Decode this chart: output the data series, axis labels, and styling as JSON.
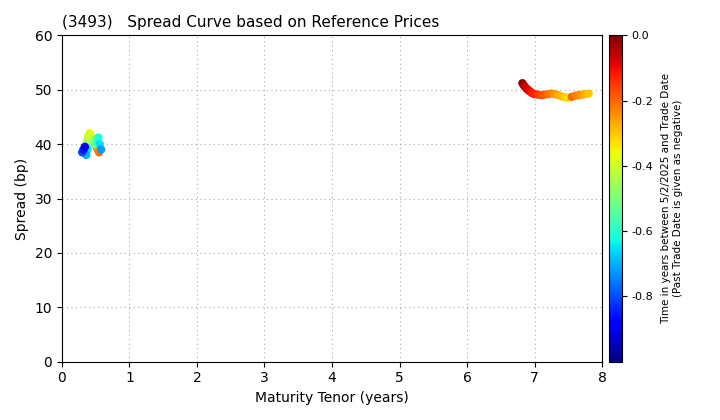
{
  "title": "(3493)   Spread Curve based on Reference Prices",
  "xlabel": "Maturity Tenor (years)",
  "ylabel": "Spread (bp)",
  "xlim": [
    0,
    8
  ],
  "ylim": [
    0,
    60
  ],
  "xticks": [
    0,
    1,
    2,
    3,
    4,
    5,
    6,
    7,
    8
  ],
  "yticks": [
    0,
    10,
    20,
    30,
    40,
    50,
    60
  ],
  "colorbar_label_line1": "Time in years between 5/2/2025 and Trade Date",
  "colorbar_label_line2": "(Past Trade Date is given as negative)",
  "cbar_min": -1.0,
  "cbar_max": 0.0,
  "cbar_ticks": [
    0.0,
    -0.2,
    -0.4,
    -0.6,
    -0.8
  ],
  "cluster1": {
    "tenors": [
      0.55,
      0.53,
      0.51,
      0.49,
      0.47,
      0.45,
      0.43,
      0.41,
      0.39,
      0.37,
      0.35,
      0.33,
      0.4,
      0.38,
      0.36,
      0.42,
      0.44,
      0.46,
      0.48,
      0.5,
      0.52,
      0.54,
      0.56,
      0.58,
      0.3,
      0.32,
      0.34
    ],
    "spreads": [
      38.5,
      39.0,
      39.5,
      40.0,
      40.5,
      41.0,
      41.5,
      42.0,
      41.5,
      40.5,
      39.5,
      38.5,
      40.0,
      39.0,
      38.0,
      40.8,
      41.0,
      40.5,
      40.0,
      40.2,
      40.6,
      41.2,
      40.0,
      39.0,
      38.5,
      39.0,
      39.5
    ],
    "times": [
      -0.2,
      -0.22,
      -0.24,
      -0.26,
      -0.28,
      -0.3,
      -0.32,
      -0.35,
      -0.4,
      -0.45,
      -0.5,
      -0.55,
      -0.6,
      -0.65,
      -0.7,
      -0.38,
      -0.42,
      -0.46,
      -0.5,
      -0.54,
      -0.58,
      -0.62,
      -0.66,
      -0.72,
      -0.8,
      -0.85,
      -0.9
    ]
  },
  "cluster2": {
    "tenors": [
      6.82,
      6.84,
      6.86,
      6.88,
      6.9,
      6.92,
      6.94,
      6.96,
      6.98,
      7.0,
      7.05,
      7.1,
      7.15,
      7.2,
      7.25,
      7.3,
      7.35,
      7.4,
      7.45,
      7.5,
      7.55,
      7.6,
      7.65,
      7.7,
      7.75,
      7.8
    ],
    "spreads": [
      51.2,
      50.8,
      50.5,
      50.2,
      50.0,
      49.8,
      49.6,
      49.4,
      49.3,
      49.2,
      49.1,
      49.0,
      49.1,
      49.2,
      49.3,
      49.2,
      49.0,
      48.8,
      48.6,
      48.5,
      48.7,
      48.9,
      49.0,
      49.1,
      49.2,
      49.3
    ],
    "times": [
      -0.02,
      -0.04,
      -0.06,
      -0.07,
      -0.08,
      -0.09,
      -0.1,
      -0.11,
      -0.12,
      -0.13,
      -0.15,
      -0.17,
      -0.19,
      -0.21,
      -0.23,
      -0.25,
      -0.27,
      -0.29,
      -0.31,
      -0.33,
      -0.2,
      -0.22,
      -0.24,
      -0.26,
      -0.28,
      -0.3
    ]
  },
  "background_color": "#ffffff",
  "grid_color": "#aaaaaa",
  "marker_size": 25
}
